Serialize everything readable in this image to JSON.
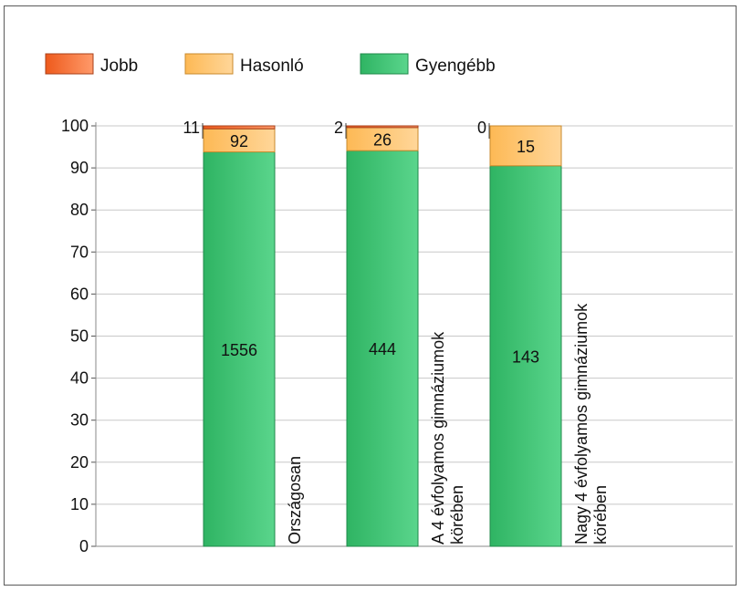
{
  "chart_data": {
    "type": "bar",
    "stacked": true,
    "normalized_percent": true,
    "title": "",
    "xlabel": "",
    "ylabel": "",
    "ylim": [
      0,
      100
    ],
    "yticks": [
      "0",
      "10",
      "20",
      "30",
      "40",
      "50",
      "60",
      "70",
      "80",
      "90",
      "100"
    ],
    "grid": true,
    "legend_position": "top-left",
    "categories": [
      [
        "Országosan"
      ],
      [
        "A 4 évfolyamos gimnáziumok",
        "körében"
      ],
      [
        "Nagy 4 évfolyamos gimnáziumok",
        "körében"
      ]
    ],
    "series": [
      {
        "name": "Gyengébb",
        "color": "#3cc070",
        "counts": [
          1556,
          444,
          143
        ],
        "percent": [
          93.8,
          94.1,
          90.5
        ]
      },
      {
        "name": "Hasonló",
        "color": "#ffc46a",
        "counts": [
          92,
          26,
          15
        ],
        "percent": [
          5.5,
          5.5,
          9.5
        ]
      },
      {
        "name": "Jobb",
        "color": "#f26a2a",
        "counts": [
          11,
          2,
          0
        ],
        "percent": [
          0.7,
          0.4,
          0.0
        ]
      }
    ]
  }
}
